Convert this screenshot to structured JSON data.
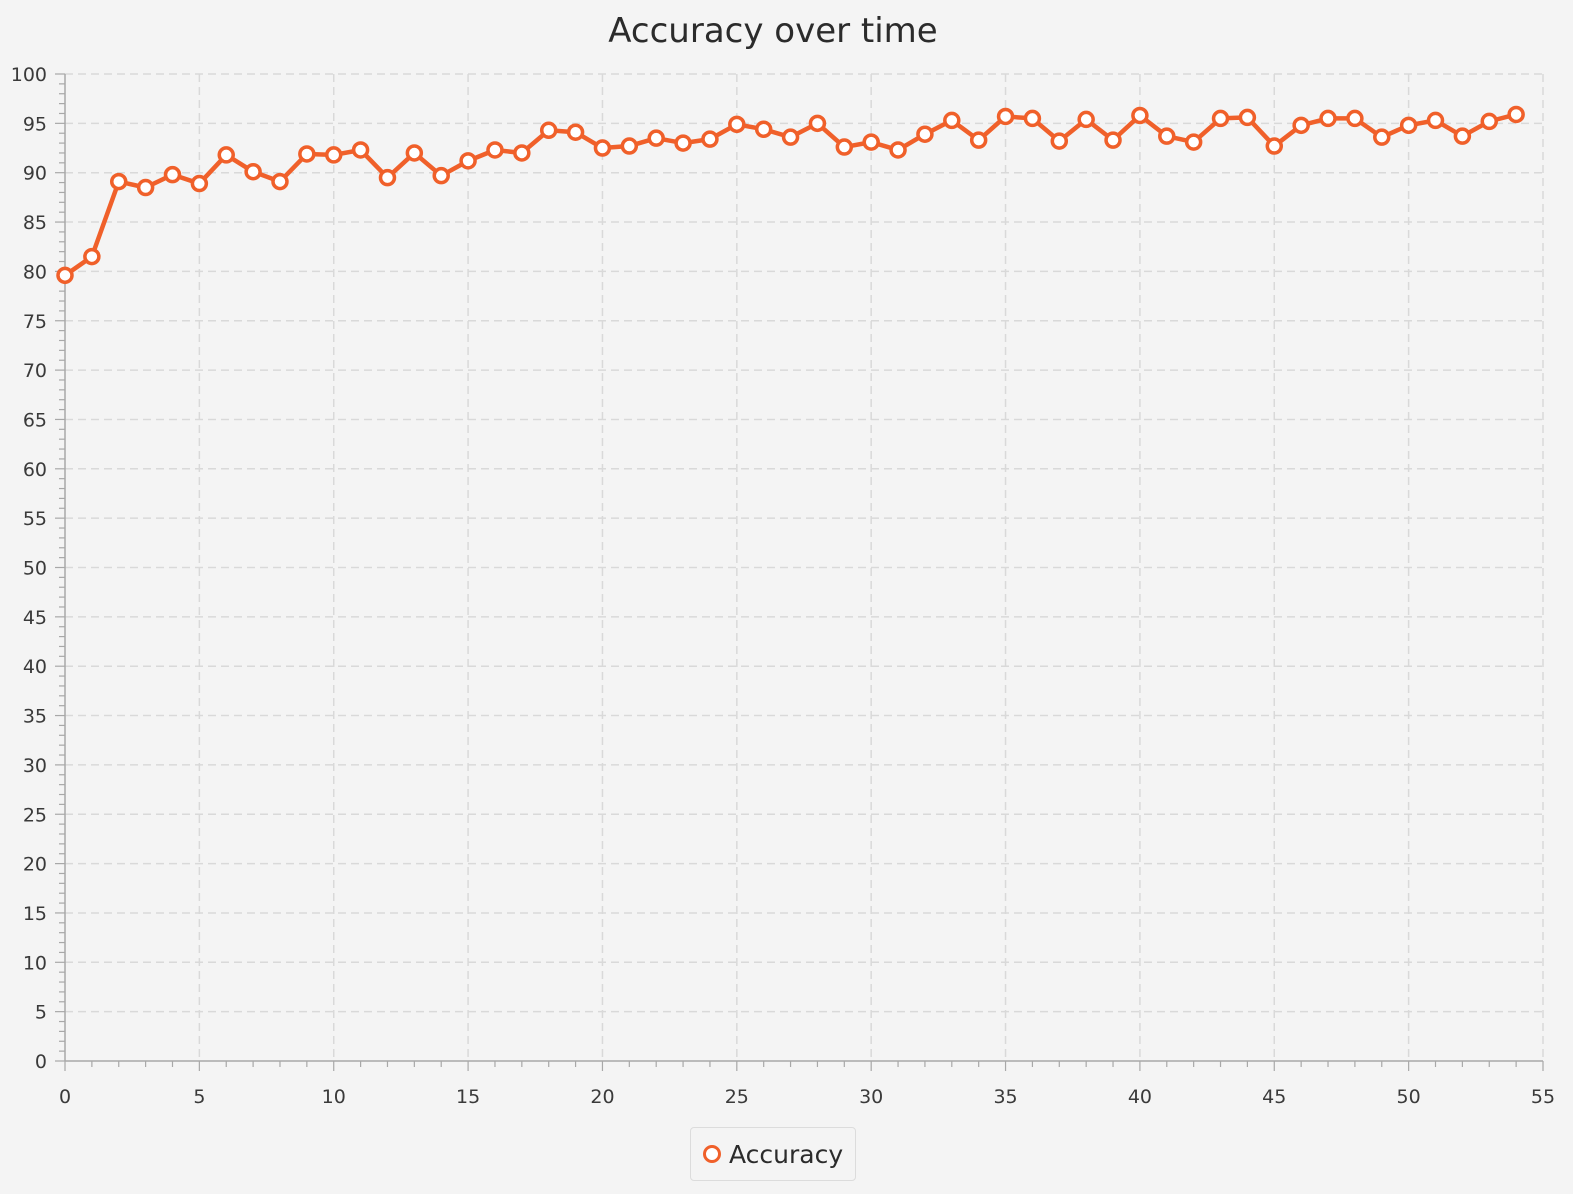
{
  "chart_data": {
    "type": "line",
    "title": "Accuracy over time",
    "xlabel": "",
    "ylabel": "",
    "xlim": [
      0,
      55
    ],
    "ylim": [
      0,
      100
    ],
    "x_ticks": [
      0,
      5,
      10,
      15,
      20,
      25,
      30,
      35,
      40,
      45,
      50,
      55
    ],
    "y_ticks": [
      0,
      5,
      10,
      15,
      20,
      25,
      30,
      35,
      40,
      45,
      50,
      55,
      60,
      65,
      70,
      75,
      80,
      85,
      90,
      95,
      100
    ],
    "grid": true,
    "legend": "bottom-center",
    "series": [
      {
        "name": "Accuracy",
        "color": "#f0602a",
        "x": [
          0,
          1,
          2,
          3,
          4,
          5,
          6,
          7,
          8,
          9,
          10,
          11,
          12,
          13,
          14,
          15,
          16,
          17,
          18,
          19,
          20,
          21,
          22,
          23,
          24,
          25,
          26,
          27,
          28,
          29,
          30,
          31,
          32,
          33,
          34,
          35,
          36,
          37,
          38,
          39,
          40,
          41,
          42,
          43,
          44,
          45,
          46,
          47,
          48,
          49,
          50,
          51,
          52,
          53,
          54
        ],
        "y": [
          79.6,
          81.5,
          89.1,
          88.5,
          89.8,
          88.9,
          91.8,
          90.1,
          89.1,
          91.9,
          91.8,
          92.3,
          89.5,
          92.0,
          89.7,
          91.2,
          92.3,
          92.0,
          94.3,
          94.1,
          92.5,
          92.7,
          93.5,
          93.0,
          93.4,
          94.9,
          94.4,
          93.6,
          95.0,
          92.6,
          93.1,
          92.3,
          93.9,
          95.3,
          93.3,
          95.7,
          95.5,
          93.2,
          95.4,
          93.3,
          95.8,
          93.7,
          93.1,
          95.5,
          95.6,
          92.7,
          94.8,
          95.5,
          95.5,
          93.6,
          94.8,
          95.3,
          93.7,
          95.2,
          95.9
        ]
      }
    ]
  }
}
